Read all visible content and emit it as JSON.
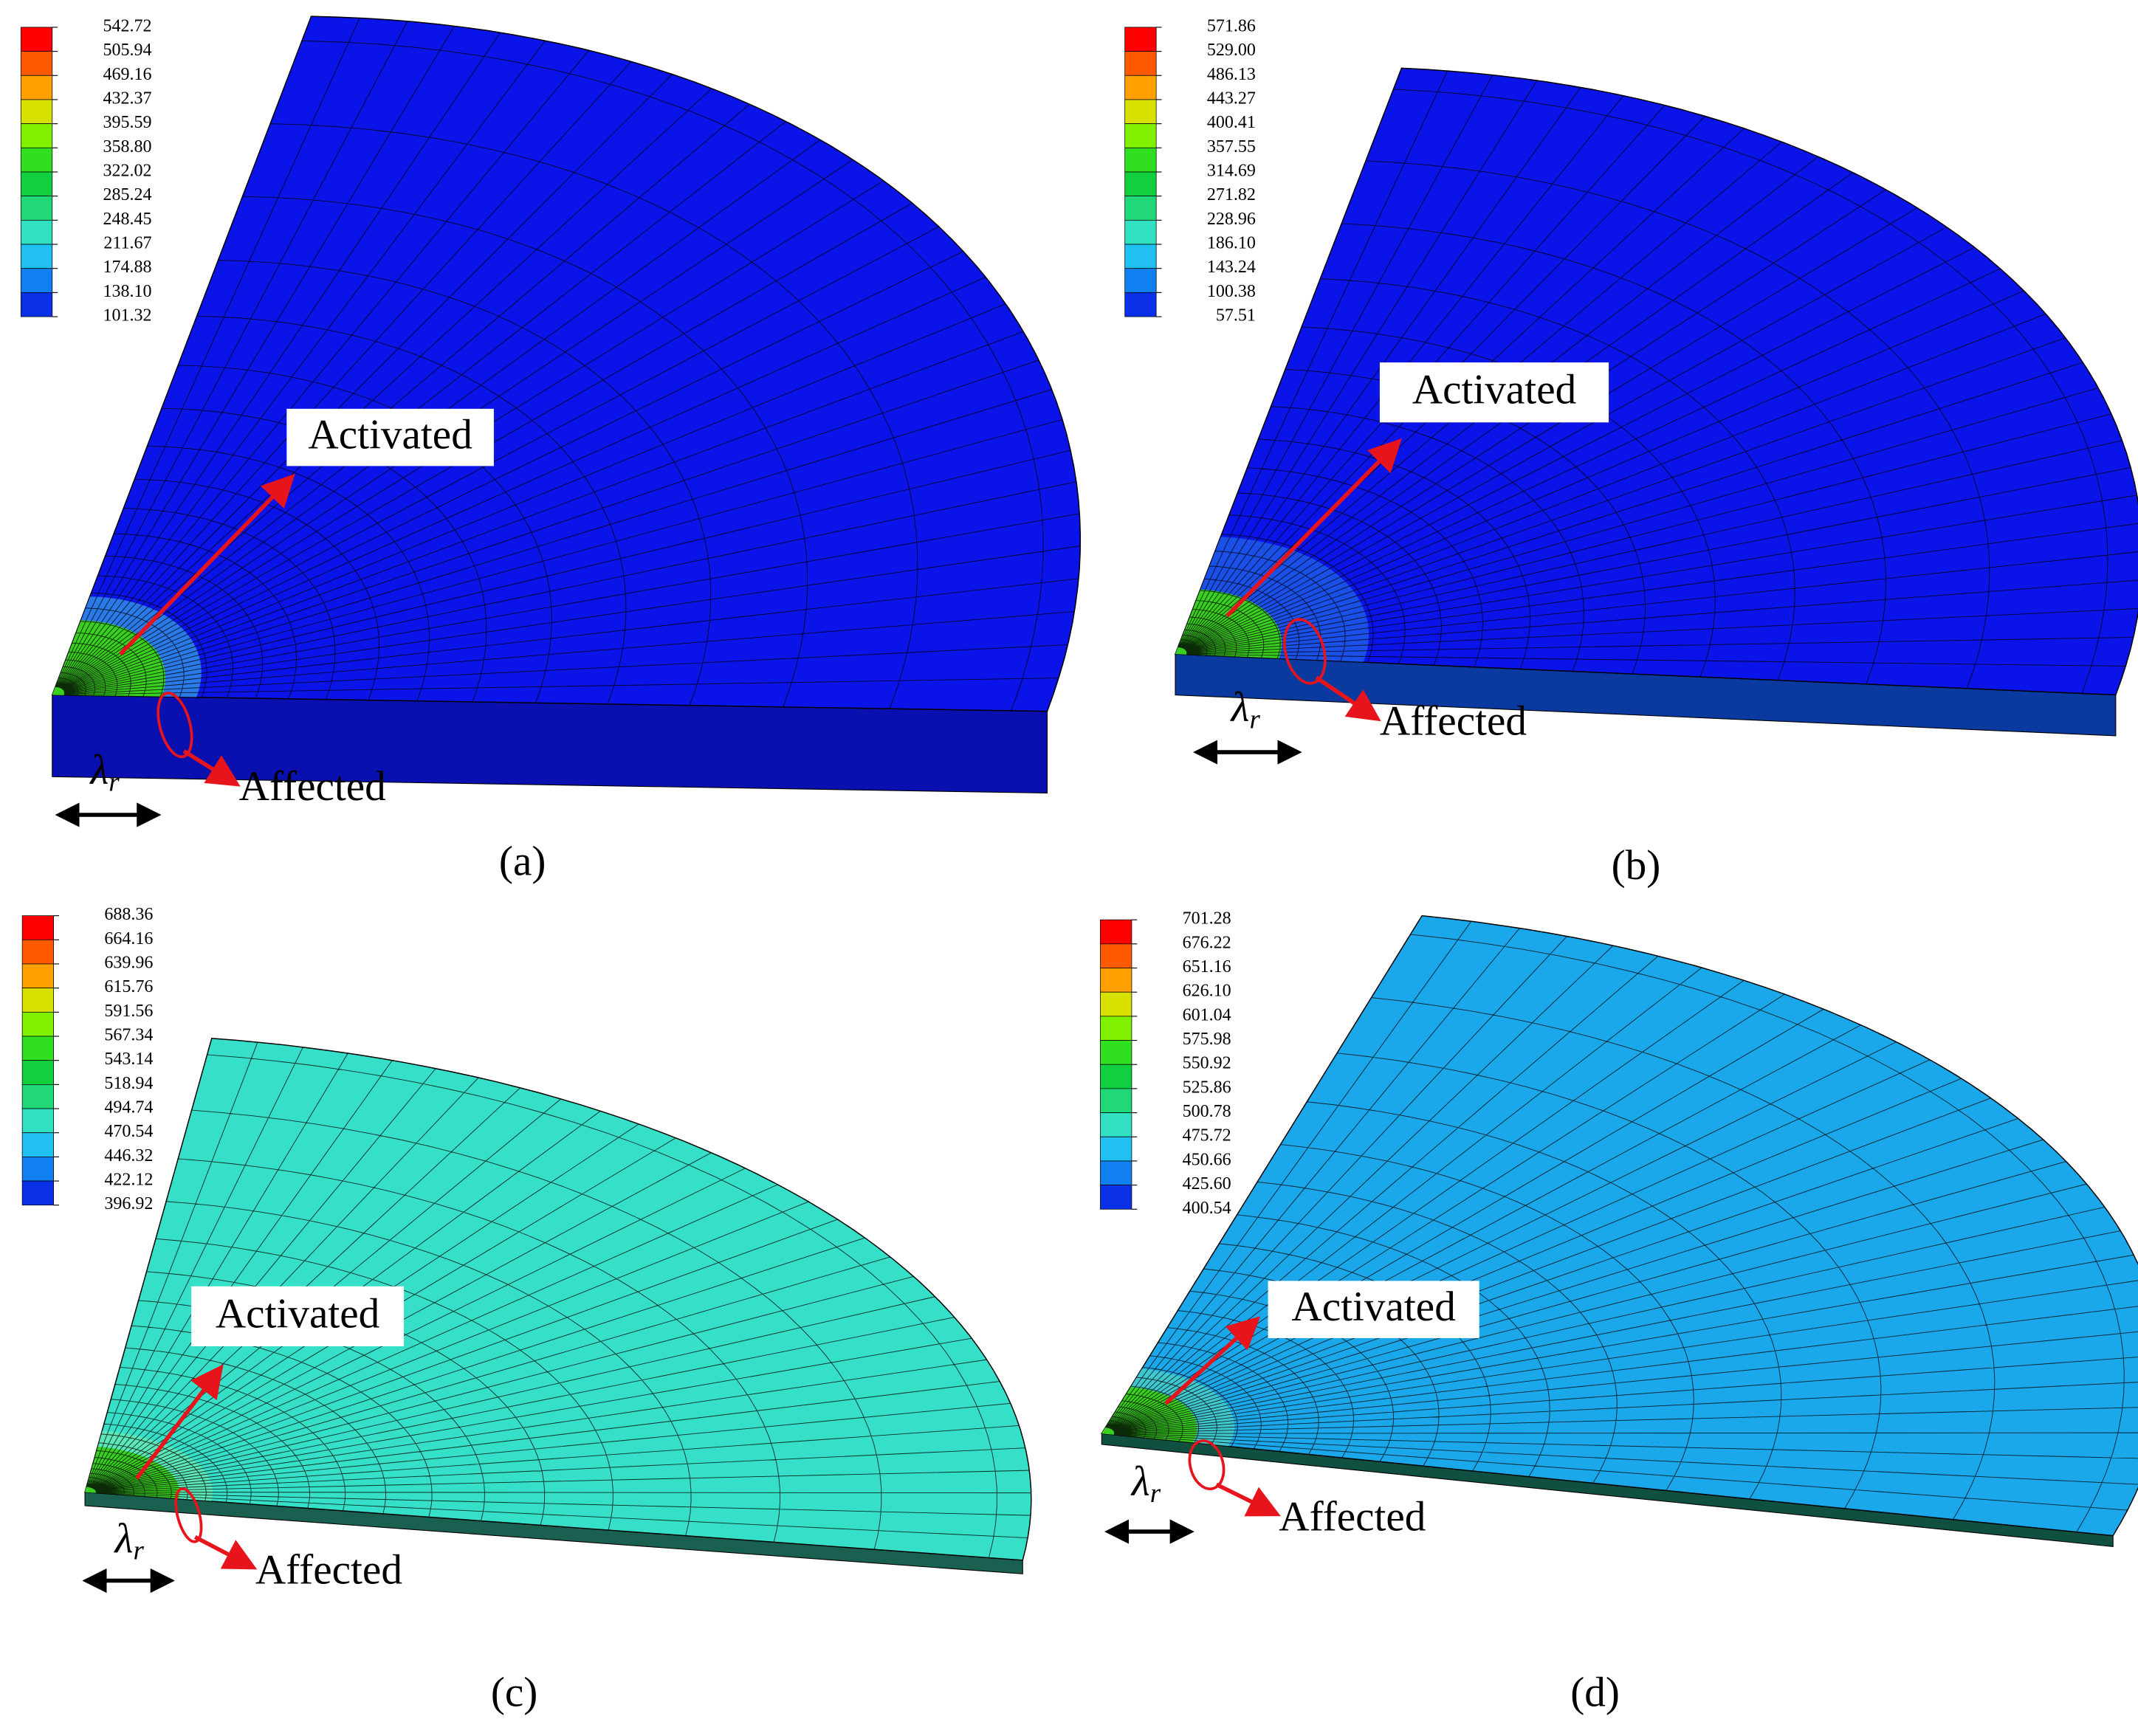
{
  "panels": [
    {
      "label": "(a)",
      "legend": [
        "542.72",
        "505.94",
        "469.16",
        "432.37",
        "395.59",
        "358.80",
        "322.02",
        "285.24",
        "248.45",
        "211.67",
        "174.88",
        "138.10",
        "101.32"
      ],
      "activated": "Activated",
      "affected": "Affected",
      "lambda": "λ",
      "lambda_subscript": "r"
    },
    {
      "label": "(b)",
      "legend": [
        "571.86",
        "529.00",
        "486.13",
        "443.27",
        "400.41",
        "357.55",
        "314.69",
        "271.82",
        "228.96",
        "186.10",
        "143.24",
        "100.38",
        "57.51"
      ],
      "activated": "Activated",
      "affected": "Affected",
      "lambda": "λ",
      "lambda_subscript": "r"
    },
    {
      "label": "(c)",
      "legend": [
        "688.36",
        "664.16",
        "639.96",
        "615.76",
        "591.56",
        "567.34",
        "543.14",
        "518.94",
        "494.74",
        "470.54",
        "446.32",
        "422.12",
        "396.92"
      ],
      "activated": "Activated",
      "affected": "Affected",
      "lambda": "λ",
      "lambda_subscript": "r"
    },
    {
      "label": "(d)",
      "legend": [
        "701.28",
        "676.22",
        "651.16",
        "626.10",
        "601.04",
        "575.98",
        "550.92",
        "525.86",
        "500.78",
        "475.72",
        "450.66",
        "425.60",
        "400.54"
      ],
      "activated": "Activated",
      "affected": "Affected",
      "lambda": "λ",
      "lambda_subscript": "r"
    }
  ]
}
